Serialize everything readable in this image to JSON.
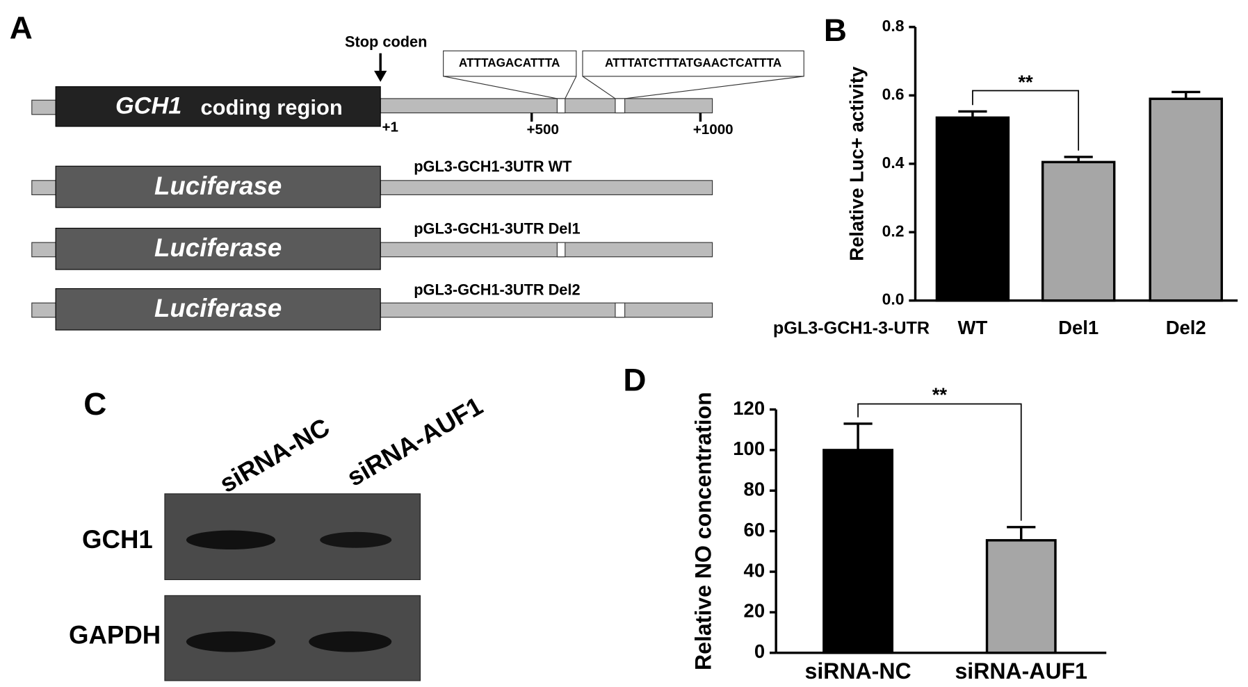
{
  "panels": {
    "a": {
      "label": "A",
      "stop": "Stop coden",
      "gene": "GCH1",
      "region": "coding region",
      "positions": [
        "+1",
        "+500",
        "+1000"
      ],
      "motifs": [
        "ATTTAGACATTTA",
        "ATTTATCTTTATGAACTCATTTA"
      ],
      "reporter": "Luciferase",
      "constructs": [
        "pGL3-GCH1-3UTR WT",
        "pGL3-GCH1-3UTR Del1",
        "pGL3-GCH1-3UTR Del2"
      ]
    },
    "b": {
      "label": "B"
    },
    "c": {
      "label": "C",
      "lanes": [
        "siRNA-NC",
        "siRNA-AUF1"
      ],
      "rows": [
        "GCH1",
        "GAPDH"
      ]
    },
    "d": {
      "label": "D"
    }
  },
  "chart_data": [
    {
      "type": "bar",
      "ylabel": "Relative Luc+ activity",
      "xlabel": "pGL3-GCH1-3-UTR",
      "categories": [
        "WT",
        "Del1",
        "Del2"
      ],
      "values": [
        0.535,
        0.405,
        0.59
      ],
      "errors": [
        0.018,
        0.015,
        0.02
      ],
      "colors": [
        "#000000",
        "#a6a6a6",
        "#a6a6a6"
      ],
      "ylim": [
        0,
        0.8
      ],
      "yticks": [
        {
          "value": 0,
          "label": "0.0"
        },
        0.2,
        0.4,
        0.6,
        0.8
      ],
      "significance": "**"
    },
    {
      "type": "bar",
      "ylabel": "Relative NO concentration",
      "categories": [
        "siRNA-NC",
        "siRNA-AUF1"
      ],
      "values": [
        100,
        55.5
      ],
      "errors": [
        13,
        6.5
      ],
      "colors": [
        "#000000",
        "#a6a6a6"
      ],
      "ylim": [
        0,
        120
      ],
      "yticks": [
        0,
        20,
        40,
        60,
        80,
        100,
        120
      ],
      "significance": "**"
    }
  ]
}
